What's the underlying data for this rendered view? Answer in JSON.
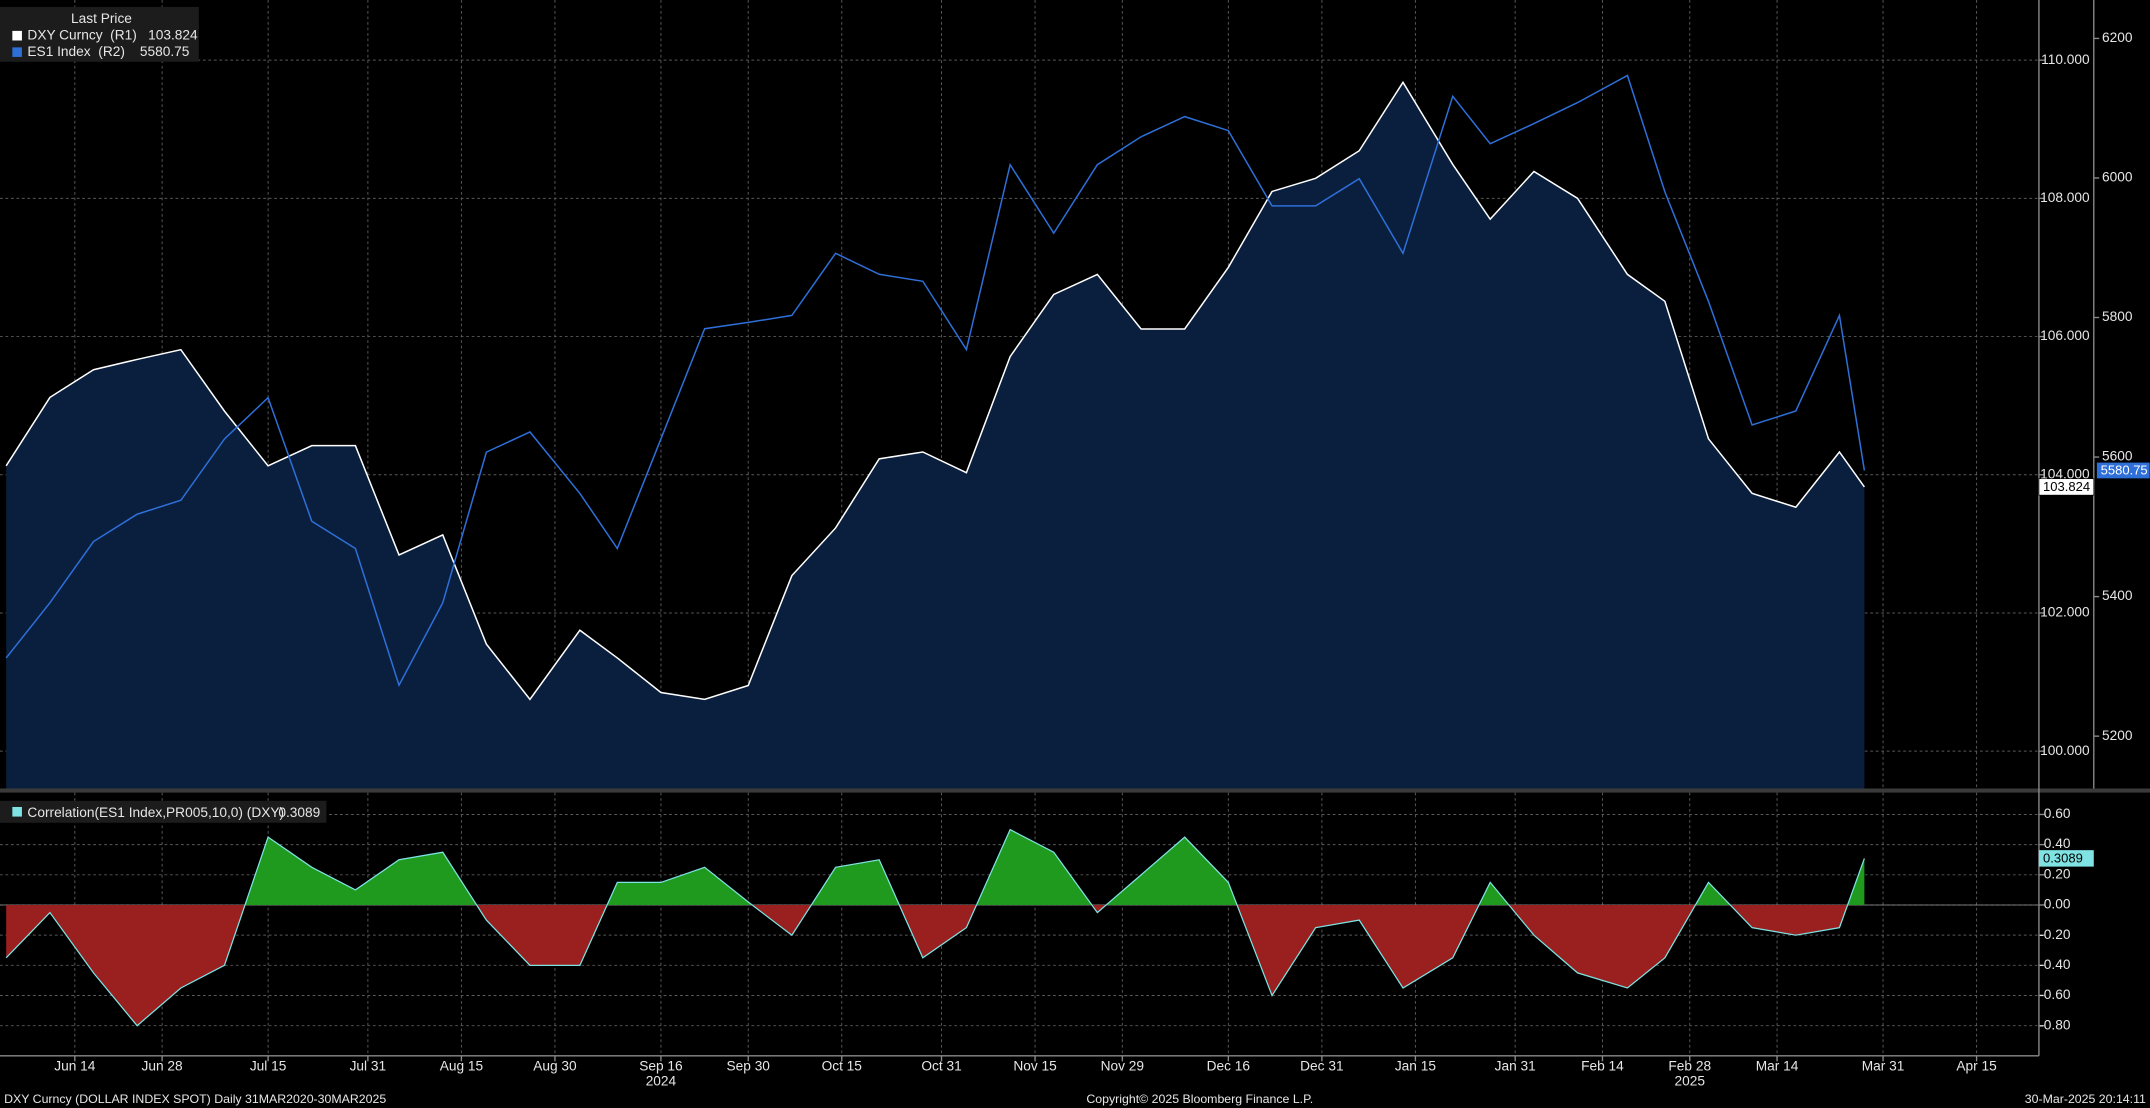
{
  "chart_data": [
    {
      "type": "line",
      "legend_title": "Last Price",
      "x": [
        "2024-06-03",
        "2024-06-10",
        "2024-06-17",
        "2024-06-24",
        "2024-07-01",
        "2024-07-08",
        "2024-07-15",
        "2024-07-22",
        "2024-07-29",
        "2024-08-05",
        "2024-08-12",
        "2024-08-19",
        "2024-08-26",
        "2024-09-03",
        "2024-09-09",
        "2024-09-16",
        "2024-09-23",
        "2024-09-30",
        "2024-10-07",
        "2024-10-14",
        "2024-10-21",
        "2024-10-28",
        "2024-11-04",
        "2024-11-11",
        "2024-11-18",
        "2024-11-25",
        "2024-12-02",
        "2024-12-09",
        "2024-12-16",
        "2024-12-23",
        "2024-12-30",
        "2025-01-06",
        "2025-01-13",
        "2025-01-21",
        "2025-01-27",
        "2025-02-03",
        "2025-02-10",
        "2025-02-18",
        "2025-02-24",
        "2025-03-03",
        "2025-03-10",
        "2025-03-17",
        "2025-03-24",
        "2025-03-28"
      ],
      "xlim": [
        "2024-06-02",
        "2025-04-25"
      ],
      "series": [
        {
          "name": "DXY Curncy  (R1)",
          "color": "#ffffff",
          "area_color": "#0a1f3d",
          "axis": "y",
          "values": [
            104.13,
            105.12,
            105.52,
            105.67,
            105.81,
            104.92,
            104.13,
            104.42,
            104.42,
            102.84,
            103.13,
            101.55,
            100.75,
            101.75,
            101.35,
            100.85,
            100.75,
            100.95,
            102.54,
            103.23,
            104.23,
            104.33,
            104.03,
            105.71,
            106.61,
            106.9,
            106.11,
            106.11,
            107.0,
            108.1,
            108.29,
            108.69,
            109.68,
            108.49,
            107.7,
            108.39,
            108.0,
            106.9,
            106.51,
            104.52,
            103.73,
            103.53,
            104.33,
            103.824
          ]
        },
        {
          "name": "ES1 Index  (R2)",
          "color": "#2e6fd8",
          "axis": "y2",
          "values": [
            5312,
            5391,
            5479,
            5518,
            5538,
            5626,
            5685,
            5508,
            5469,
            5273,
            5391,
            5607,
            5636,
            5548,
            5469,
            5626,
            5784,
            5793,
            5803,
            5892,
            5862,
            5852,
            5754,
            6019,
            5921,
            6019,
            6059,
            6088,
            6068,
            5960,
            5960,
            5999,
            5892,
            6117,
            6049,
            6078,
            6108,
            6147,
            5980,
            5823,
            5646,
            5666,
            5803,
            5580.75
          ]
        }
      ],
      "ylim": [
        99.46,
        110.87
      ],
      "yticks": [
        {
          "value": 100,
          "label": "100.000"
        },
        {
          "value": 102,
          "label": "102.000"
        },
        {
          "value": 104,
          "label": "104.000"
        },
        {
          "value": 106,
          "label": "106.000"
        },
        {
          "value": 108,
          "label": "108.000"
        },
        {
          "value": 110,
          "label": "110.000"
        }
      ],
      "y2lim": [
        5125,
        6255
      ],
      "y2ticks": [
        5200,
        5400,
        5600,
        5800,
        6000,
        6200
      ],
      "grid": true
    },
    {
      "type": "area",
      "x": [
        "2024-06-03",
        "2024-06-10",
        "2024-06-17",
        "2024-06-24",
        "2024-07-01",
        "2024-07-08",
        "2024-07-15",
        "2024-07-22",
        "2024-07-29",
        "2024-08-05",
        "2024-08-12",
        "2024-08-19",
        "2024-08-26",
        "2024-09-03",
        "2024-09-09",
        "2024-09-16",
        "2024-09-23",
        "2024-09-30",
        "2024-10-07",
        "2024-10-14",
        "2024-10-21",
        "2024-10-28",
        "2024-11-04",
        "2024-11-11",
        "2024-11-18",
        "2024-11-25",
        "2024-12-02",
        "2024-12-09",
        "2024-12-16",
        "2024-12-23",
        "2024-12-30",
        "2025-01-06",
        "2025-01-13",
        "2025-01-21",
        "2025-01-27",
        "2025-02-03",
        "2025-02-10",
        "2025-02-18",
        "2025-02-24",
        "2025-03-03",
        "2025-03-10",
        "2025-03-17",
        "2025-03-24",
        "2025-03-28"
      ],
      "xlim": [
        "2024-06-02",
        "2025-04-25"
      ],
      "series": [
        {
          "name": "Correlation(ES1 Index,PR005,10,0) (DXY)",
          "color": "#7fe3e3",
          "positive_color": "#1f9a1f",
          "negative_color": "#9a1f1f",
          "values": [
            -0.35,
            -0.05,
            -0.45,
            -0.8,
            -0.55,
            -0.4,
            0.45,
            0.25,
            0.1,
            0.3,
            0.35,
            -0.1,
            -0.4,
            -0.4,
            0.15,
            0.15,
            0.25,
            0.02,
            -0.2,
            0.25,
            0.3,
            -0.35,
            -0.15,
            0.5,
            0.35,
            -0.05,
            0.2,
            0.45,
            0.15,
            -0.6,
            -0.15,
            -0.1,
            -0.55,
            -0.35,
            0.15,
            -0.2,
            -0.45,
            -0.55,
            -0.35,
            0.15,
            -0.15,
            -0.2,
            -0.15,
            0.3089
          ]
        }
      ],
      "ylim": [
        -1.0,
        0.745
      ],
      "yticks": [
        {
          "value": -0.8,
          "label": "-0.80"
        },
        {
          "value": -0.6,
          "label": "-0.60"
        },
        {
          "value": -0.4,
          "label": "-0.40"
        },
        {
          "value": -0.2,
          "label": "-0.20"
        },
        {
          "value": 0,
          "label": "0.00"
        },
        {
          "value": 0.2,
          "label": "0.20"
        },
        {
          "value": 0.4,
          "label": "0.40"
        },
        {
          "value": 0.6,
          "label": "0.60"
        }
      ],
      "xticks": [
        {
          "value": "2024-06-14",
          "label": "Jun 14"
        },
        {
          "value": "2024-06-28",
          "label": "Jun 28"
        },
        {
          "value": "2024-07-15",
          "label": "Jul 15"
        },
        {
          "value": "2024-07-31",
          "label": "Jul 31"
        },
        {
          "value": "2024-08-15",
          "label": "Aug 15"
        },
        {
          "value": "2024-08-30",
          "label": "Aug 30"
        },
        {
          "value": "2024-09-16",
          "label": "Sep 16"
        },
        {
          "value": "2024-09-30",
          "label": "Sep 30"
        },
        {
          "value": "2024-10-15",
          "label": "Oct 15"
        },
        {
          "value": "2024-10-31",
          "label": "Oct 31"
        },
        {
          "value": "2024-11-15",
          "label": "Nov 15"
        },
        {
          "value": "2024-11-29",
          "label": "Nov 29"
        },
        {
          "value": "2024-12-16",
          "label": "Dec 16"
        },
        {
          "value": "2024-12-31",
          "label": "Dec 31"
        },
        {
          "value": "2025-01-15",
          "label": "Jan 15"
        },
        {
          "value": "2025-01-31",
          "label": "Jan 31"
        },
        {
          "value": "2025-02-14",
          "label": "Feb 14"
        },
        {
          "value": "2025-02-28",
          "label": "Feb 28"
        },
        {
          "value": "2025-03-14",
          "label": "Mar 14"
        },
        {
          "value": "2025-03-31",
          "label": "Mar 31"
        },
        {
          "value": "2025-04-15",
          "label": "Apr 15"
        }
      ],
      "year_labels": [
        {
          "value": "2024-09-16",
          "label": "2024"
        },
        {
          "value": "2025-02-28",
          "label": "2025"
        }
      ],
      "grid": true
    }
  ],
  "footer": {
    "left": "DXY Curncy (DOLLAR INDEX SPOT)  Daily 31MAR2020-30MAR2025",
    "center": "Copyright© 2025 Bloomberg Finance L.P.",
    "right": "30-Mar-2025 20:14:11"
  }
}
